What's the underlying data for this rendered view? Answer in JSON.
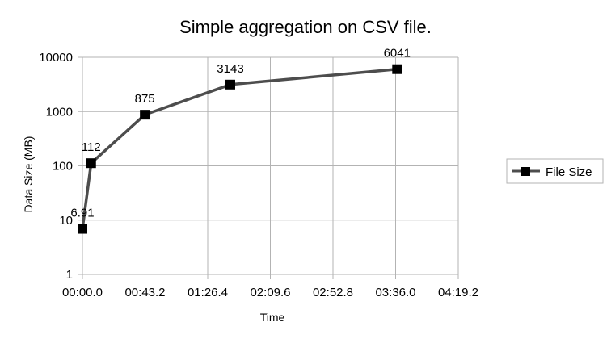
{
  "chart_data": {
    "type": "line",
    "title": "Simple aggregation on CSV file.",
    "xlabel": "Time",
    "ylabel": "Data Size (MB)",
    "y_scale": "log",
    "ylim": [
      1,
      10000
    ],
    "y_ticks": [
      1,
      10,
      100,
      1000,
      10000
    ],
    "y_tick_labels": [
      "1",
      "10",
      "100",
      "1000",
      "10000"
    ],
    "xlim_seconds": [
      0,
      259.2
    ],
    "x_ticks_seconds": [
      0,
      43.2,
      86.4,
      129.6,
      172.8,
      216,
      259.2
    ],
    "x_tick_labels": [
      "00:00.0",
      "00:43.2",
      "01:26.4",
      "02:09.6",
      "02:52.8",
      "03:36.0",
      "04:19.2"
    ],
    "grid": true,
    "legend_position": "right",
    "series": [
      {
        "name": "File Size",
        "color": "#4d4d4d",
        "marker_color": "#000000",
        "x_seconds": [
          0,
          6,
          43,
          102,
          217
        ],
        "values": [
          6.91,
          112,
          875,
          3143,
          6041
        ],
        "labels": [
          "6.91",
          "112",
          "875",
          "3143",
          "6041"
        ]
      }
    ]
  }
}
